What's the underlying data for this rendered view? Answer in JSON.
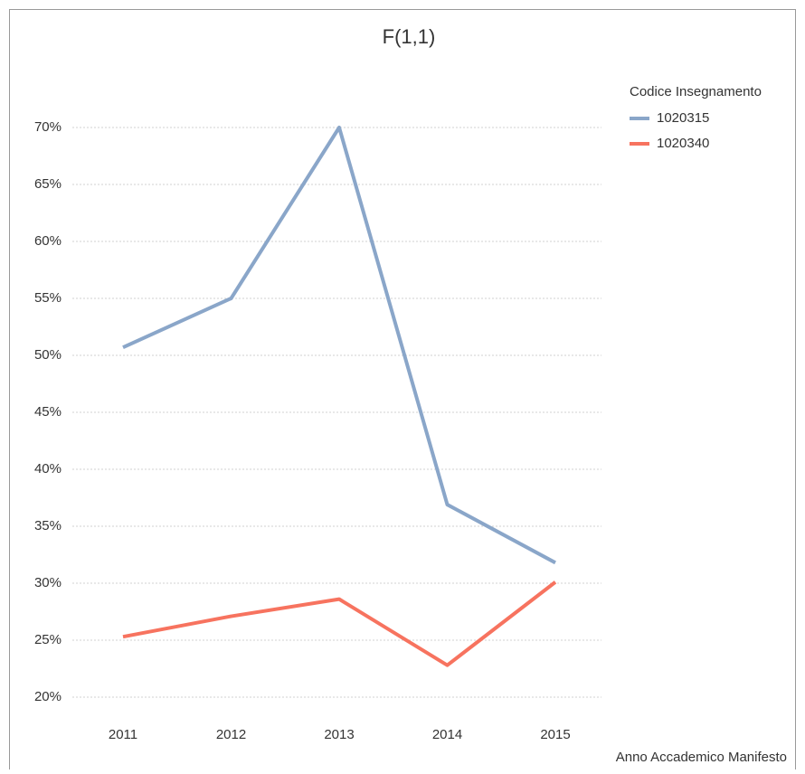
{
  "chart_data": {
    "type": "line",
    "title": "F(1,1)",
    "x_label": "Anno Accademico Manifesto",
    "legend_title": "Codice Insegnamento",
    "legend_position": "top-right",
    "categories": [
      "2011",
      "2012",
      "2013",
      "2014",
      "2015"
    ],
    "series": [
      {
        "name": "1020315",
        "color": "#8aa6c9",
        "values": [
          50.7,
          55,
          70,
          36.9,
          31.8
        ]
      },
      {
        "name": "1020340",
        "color": "#f7735f",
        "values": [
          25.3,
          27.1,
          28.6,
          22.8,
          30.1
        ]
      }
    ],
    "ylim": [
      20,
      70
    ],
    "yticks": [
      {
        "value": 20,
        "label": "20%"
      },
      {
        "value": 25,
        "label": "25%"
      },
      {
        "value": 30,
        "label": "30%"
      },
      {
        "value": 35,
        "label": "35%"
      },
      {
        "value": 40,
        "label": "40%"
      },
      {
        "value": 45,
        "label": "45%"
      },
      {
        "value": 50,
        "label": "50%"
      },
      {
        "value": 55,
        "label": "55%"
      },
      {
        "value": 60,
        "label": "60%"
      },
      {
        "value": 65,
        "label": "65%"
      },
      {
        "value": 70,
        "label": "70%"
      }
    ],
    "grid": true
  }
}
